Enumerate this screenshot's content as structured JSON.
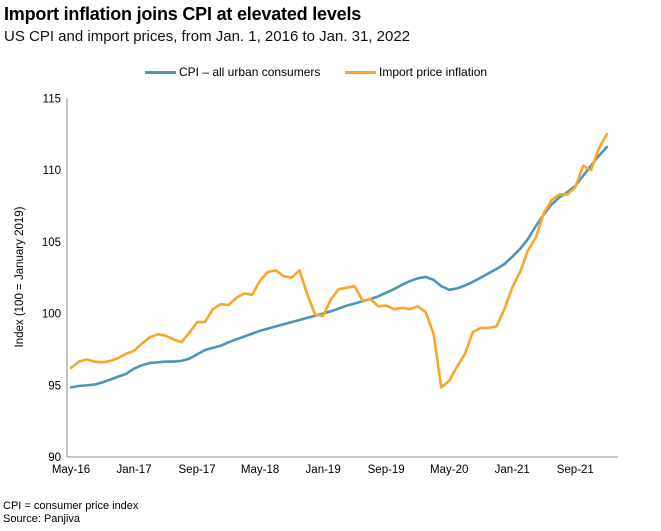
{
  "header": {
    "title": "Import inflation joins CPI at elevated levels",
    "subtitle": "US CPI and import prices, from Jan. 1, 2016 to Jan. 31, 2022"
  },
  "legend": {
    "items": [
      {
        "label": "CPI – all urban consumers",
        "color": "#4E94B9"
      },
      {
        "label": "Import price inflation",
        "color": "#F7A62A"
      }
    ]
  },
  "footer": {
    "note": "CPI = consumer price index",
    "source": "Source: Panjiva"
  },
  "chart_data": {
    "type": "line",
    "title": "Import inflation joins CPI at elevated levels",
    "subtitle": "US CPI and import prices, from Jan. 1, 2016 to Jan. 31, 2022",
    "xlabel": "",
    "ylabel": "Index (100 = January 2019)",
    "ylim": [
      90,
      115
    ],
    "yticks": [
      90,
      95,
      100,
      105,
      110,
      115
    ],
    "grid": false,
    "legend_position": "top",
    "axis_color": "#A3A3A3",
    "xtick_every": 8,
    "xtick_labels": [
      "May-16",
      "Jan-17",
      "Sep-17",
      "May-18",
      "Jan-19",
      "Sep-19",
      "May-20",
      "Jan-21",
      "Sep-21"
    ],
    "months": [
      "May-16",
      "Jun-16",
      "Jul-16",
      "Aug-16",
      "Sep-16",
      "Oct-16",
      "Nov-16",
      "Dec-16",
      "Jan-17",
      "Feb-17",
      "Mar-17",
      "Apr-17",
      "May-17",
      "Jun-17",
      "Jul-17",
      "Aug-17",
      "Sep-17",
      "Oct-17",
      "Nov-17",
      "Dec-17",
      "Jan-18",
      "Feb-18",
      "Mar-18",
      "Apr-18",
      "May-18",
      "Jun-18",
      "Jul-18",
      "Aug-18",
      "Sep-18",
      "Oct-18",
      "Nov-18",
      "Dec-18",
      "Jan-19",
      "Feb-19",
      "Mar-19",
      "Apr-19",
      "May-19",
      "Jun-19",
      "Jul-19",
      "Aug-19",
      "Sep-19",
      "Oct-19",
      "Nov-19",
      "Dec-19",
      "Jan-20",
      "Feb-20",
      "Mar-20",
      "Apr-20",
      "May-20",
      "Jun-20",
      "Jul-20",
      "Aug-20",
      "Sep-20",
      "Oct-20",
      "Nov-20",
      "Dec-20",
      "Jan-21",
      "Feb-21",
      "Mar-21",
      "Apr-21",
      "May-21",
      "Jun-21",
      "Jul-21",
      "Aug-21",
      "Sep-21",
      "Oct-21",
      "Nov-21",
      "Dec-21",
      "Jan-22"
    ],
    "series": [
      {
        "name": "CPI – all urban consumers",
        "color": "#4E94B9",
        "values": [
          94.85,
          94.95,
          95.0,
          95.05,
          95.2,
          95.4,
          95.6,
          95.8,
          96.15,
          96.4,
          96.55,
          96.6,
          96.65,
          96.65,
          96.7,
          96.85,
          97.15,
          97.45,
          97.6,
          97.75,
          98.0,
          98.2,
          98.4,
          98.6,
          98.8,
          98.95,
          99.1,
          99.25,
          99.4,
          99.55,
          99.7,
          99.85,
          100.0,
          100.15,
          100.35,
          100.55,
          100.7,
          100.85,
          101.0,
          101.2,
          101.45,
          101.7,
          102.0,
          102.25,
          102.45,
          102.55,
          102.35,
          101.9,
          101.65,
          101.75,
          101.95,
          102.2,
          102.5,
          102.8,
          103.1,
          103.45,
          103.95,
          104.5,
          105.2,
          106.1,
          106.9,
          107.6,
          108.1,
          108.45,
          108.9,
          109.6,
          110.3,
          111.0,
          111.6
        ]
      },
      {
        "name": "Import price inflation",
        "color": "#F7A62A",
        "values": [
          96.2,
          96.65,
          96.8,
          96.65,
          96.6,
          96.7,
          96.9,
          97.2,
          97.4,
          97.9,
          98.35,
          98.55,
          98.45,
          98.2,
          98.0,
          98.65,
          99.4,
          99.4,
          100.3,
          100.65,
          100.6,
          101.1,
          101.4,
          101.3,
          102.3,
          102.9,
          103.0,
          102.6,
          102.5,
          103.0,
          101.3,
          99.9,
          99.85,
          101.0,
          101.7,
          101.8,
          101.9,
          100.9,
          101.0,
          100.5,
          100.55,
          100.3,
          100.4,
          100.3,
          100.5,
          100.1,
          98.6,
          94.85,
          95.3,
          96.3,
          97.2,
          98.7,
          99.0,
          99.0,
          99.1,
          100.3,
          101.8,
          102.9,
          104.4,
          105.3,
          107.0,
          107.9,
          108.3,
          108.3,
          108.8,
          110.3,
          110.0,
          111.5,
          112.5
        ]
      }
    ]
  }
}
